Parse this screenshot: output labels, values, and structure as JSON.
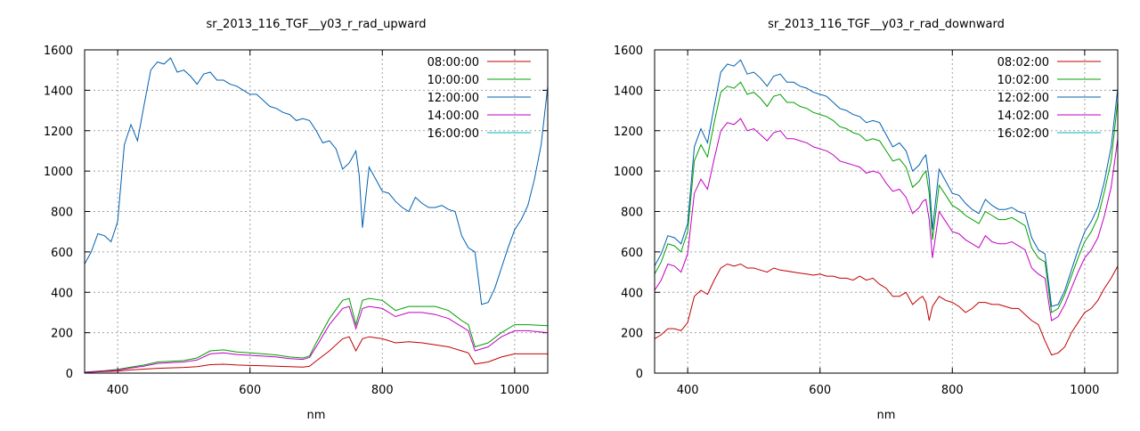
{
  "chart_data": [
    {
      "type": "line",
      "title": "sr_2013_116_TGF__y03_r_rad_upward",
      "xlabel": "nm",
      "ylabel": "",
      "xlim": [
        350,
        1050
      ],
      "ylim": [
        0,
        1600
      ],
      "xticks": [
        400,
        600,
        800,
        1000
      ],
      "yticks": [
        0,
        200,
        400,
        600,
        800,
        1000,
        1200,
        1400,
        1600
      ],
      "grid": true,
      "legend_position": "top-right",
      "series": [
        {
          "name": "08:00:00",
          "color": "#c00000",
          "x": [
            350,
            380,
            400,
            420,
            440,
            460,
            480,
            500,
            520,
            540,
            560,
            580,
            600,
            620,
            640,
            660,
            680,
            690,
            700,
            720,
            740,
            750,
            760,
            770,
            780,
            800,
            820,
            840,
            860,
            880,
            900,
            920,
            930,
            940,
            960,
            980,
            1000,
            1020,
            1050
          ],
          "y": [
            3,
            8,
            10,
            16,
            20,
            24,
            26,
            28,
            32,
            42,
            44,
            40,
            38,
            36,
            34,
            32,
            30,
            34,
            60,
            110,
            170,
            180,
            110,
            170,
            180,
            170,
            150,
            155,
            150,
            140,
            130,
            110,
            100,
            45,
            55,
            80,
            95,
            95,
            95
          ]
        },
        {
          "name": "10:00:00",
          "color": "#00a000",
          "x": [
            350,
            380,
            400,
            420,
            440,
            460,
            480,
            500,
            520,
            540,
            560,
            580,
            600,
            620,
            640,
            660,
            680,
            690,
            700,
            720,
            740,
            750,
            760,
            770,
            780,
            800,
            820,
            840,
            860,
            880,
            900,
            920,
            930,
            940,
            960,
            980,
            1000,
            1020,
            1050
          ],
          "y": [
            5,
            12,
            18,
            30,
            40,
            55,
            58,
            62,
            75,
            110,
            115,
            105,
            100,
            95,
            90,
            80,
            75,
            85,
            150,
            270,
            360,
            370,
            240,
            360,
            370,
            360,
            310,
            330,
            330,
            330,
            310,
            260,
            240,
            130,
            150,
            200,
            240,
            240,
            235
          ]
        },
        {
          "name": "12:00:00",
          "color": "#0060b0",
          "x": [
            350,
            360,
            370,
            380,
            390,
            400,
            410,
            420,
            430,
            440,
            450,
            460,
            470,
            480,
            490,
            500,
            510,
            520,
            530,
            540,
            550,
            560,
            570,
            580,
            590,
            600,
            610,
            620,
            630,
            640,
            650,
            660,
            670,
            680,
            690,
            700,
            710,
            720,
            730,
            740,
            750,
            755,
            760,
            765,
            770,
            780,
            790,
            800,
            810,
            820,
            830,
            840,
            850,
            860,
            870,
            880,
            890,
            900,
            910,
            920,
            930,
            940,
            950,
            960,
            970,
            980,
            990,
            1000,
            1010,
            1020,
            1030,
            1040,
            1050
          ],
          "y": [
            540,
            600,
            690,
            680,
            650,
            750,
            1130,
            1230,
            1150,
            1330,
            1500,
            1540,
            1530,
            1560,
            1490,
            1500,
            1470,
            1430,
            1480,
            1490,
            1450,
            1450,
            1430,
            1420,
            1400,
            1380,
            1380,
            1350,
            1320,
            1310,
            1290,
            1280,
            1250,
            1260,
            1250,
            1200,
            1140,
            1150,
            1110,
            1010,
            1040,
            1070,
            1100,
            980,
            720,
            1020,
            960,
            900,
            890,
            850,
            820,
            800,
            870,
            840,
            820,
            820,
            830,
            810,
            800,
            680,
            620,
            600,
            340,
            350,
            420,
            520,
            620,
            710,
            760,
            830,
            960,
            1130,
            1420
          ]
        },
        {
          "name": "14:00:00",
          "color": "#c000c0",
          "x": [
            350,
            380,
            400,
            420,
            440,
            460,
            480,
            500,
            520,
            540,
            560,
            580,
            600,
            620,
            640,
            660,
            680,
            690,
            700,
            720,
            740,
            750,
            760,
            770,
            780,
            800,
            820,
            840,
            860,
            880,
            900,
            920,
            930,
            940,
            960,
            980,
            1000,
            1020,
            1050
          ],
          "y": [
            4,
            10,
            15,
            25,
            35,
            48,
            52,
            55,
            65,
            95,
            100,
            92,
            88,
            84,
            80,
            72,
            68,
            78,
            130,
            240,
            320,
            330,
            220,
            320,
            330,
            320,
            280,
            300,
            300,
            290,
            270,
            230,
            210,
            110,
            130,
            180,
            210,
            210,
            200
          ]
        },
        {
          "name": "16:00:00",
          "color": "#00b0c0",
          "x": [],
          "y": []
        }
      ]
    },
    {
      "type": "line",
      "title": "sr_2013_116_TGF__y03_r_rad_downward",
      "xlabel": "nm",
      "ylabel": "",
      "xlim": [
        350,
        1050
      ],
      "ylim": [
        0,
        1600
      ],
      "xticks": [
        400,
        600,
        800,
        1000
      ],
      "yticks": [
        0,
        200,
        400,
        600,
        800,
        1000,
        1200,
        1400,
        1600
      ],
      "grid": true,
      "legend_position": "top-right",
      "series": [
        {
          "name": "08:02:00",
          "color": "#c00000",
          "x": [
            350,
            360,
            370,
            380,
            390,
            400,
            410,
            420,
            430,
            440,
            450,
            460,
            470,
            480,
            490,
            500,
            510,
            520,
            530,
            540,
            550,
            560,
            570,
            580,
            590,
            600,
            610,
            620,
            630,
            640,
            650,
            660,
            670,
            680,
            690,
            700,
            710,
            720,
            730,
            740,
            750,
            755,
            760,
            765,
            770,
            780,
            790,
            800,
            810,
            820,
            830,
            840,
            850,
            860,
            870,
            880,
            890,
            900,
            910,
            920,
            930,
            940,
            950,
            960,
            970,
            980,
            990,
            1000,
            1010,
            1020,
            1030,
            1040,
            1050
          ],
          "y": [
            170,
            190,
            220,
            220,
            210,
            250,
            380,
            410,
            390,
            460,
            520,
            540,
            530,
            540,
            520,
            520,
            510,
            500,
            520,
            510,
            505,
            500,
            495,
            490,
            485,
            490,
            480,
            480,
            470,
            470,
            460,
            480,
            460,
            470,
            440,
            420,
            380,
            380,
            400,
            340,
            370,
            380,
            350,
            260,
            330,
            380,
            360,
            350,
            330,
            300,
            320,
            350,
            350,
            340,
            340,
            330,
            320,
            320,
            290,
            260,
            240,
            160,
            90,
            100,
            130,
            200,
            250,
            300,
            320,
            360,
            420,
            470,
            530
          ]
        },
        {
          "name": "10:02:00",
          "color": "#00a000",
          "x": [
            350,
            360,
            370,
            380,
            390,
            400,
            410,
            420,
            430,
            440,
            450,
            460,
            470,
            480,
            490,
            500,
            510,
            520,
            530,
            540,
            550,
            560,
            570,
            580,
            590,
            600,
            610,
            620,
            630,
            640,
            650,
            660,
            670,
            680,
            690,
            700,
            710,
            720,
            730,
            740,
            750,
            755,
            760,
            765,
            770,
            780,
            790,
            800,
            810,
            820,
            830,
            840,
            850,
            860,
            870,
            880,
            890,
            900,
            910,
            920,
            930,
            940,
            950,
            960,
            970,
            980,
            990,
            1000,
            1010,
            1020,
            1030,
            1040,
            1050
          ],
          "y": [
            490,
            550,
            640,
            630,
            600,
            700,
            1050,
            1130,
            1070,
            1240,
            1390,
            1420,
            1410,
            1440,
            1380,
            1390,
            1360,
            1320,
            1370,
            1380,
            1340,
            1340,
            1320,
            1310,
            1290,
            1280,
            1270,
            1250,
            1220,
            1210,
            1190,
            1180,
            1150,
            1160,
            1150,
            1100,
            1050,
            1060,
            1020,
            920,
            950,
            980,
            1000,
            890,
            660,
            930,
            880,
            830,
            810,
            780,
            760,
            740,
            800,
            780,
            760,
            760,
            770,
            750,
            730,
            620,
            570,
            550,
            300,
            320,
            390,
            480,
            570,
            650,
            700,
            770,
            900,
            1050,
            1350
          ]
        },
        {
          "name": "12:02:00",
          "color": "#0060b0",
          "x": [
            350,
            360,
            370,
            380,
            390,
            400,
            410,
            420,
            430,
            440,
            450,
            460,
            470,
            480,
            490,
            500,
            510,
            520,
            530,
            540,
            550,
            560,
            570,
            580,
            590,
            600,
            610,
            620,
            630,
            640,
            650,
            660,
            670,
            680,
            690,
            700,
            710,
            720,
            730,
            740,
            750,
            755,
            760,
            765,
            770,
            780,
            790,
            800,
            810,
            820,
            830,
            840,
            850,
            860,
            870,
            880,
            890,
            900,
            910,
            920,
            930,
            940,
            950,
            960,
            970,
            980,
            990,
            1000,
            1010,
            1020,
            1030,
            1040,
            1050
          ],
          "y": [
            530,
            590,
            680,
            670,
            640,
            740,
            1120,
            1210,
            1140,
            1320,
            1490,
            1530,
            1520,
            1550,
            1480,
            1490,
            1460,
            1420,
            1470,
            1480,
            1440,
            1440,
            1420,
            1410,
            1390,
            1380,
            1370,
            1340,
            1310,
            1300,
            1280,
            1270,
            1240,
            1250,
            1240,
            1180,
            1120,
            1140,
            1100,
            1000,
            1030,
            1060,
            1080,
            960,
            710,
            1010,
            950,
            890,
            880,
            840,
            810,
            790,
            860,
            830,
            810,
            810,
            820,
            800,
            790,
            670,
            610,
            590,
            330,
            340,
            410,
            510,
            610,
            700,
            750,
            820,
            950,
            1120,
            1410
          ]
        },
        {
          "name": "14:02:00",
          "color": "#c000c0",
          "x": [
            350,
            360,
            370,
            380,
            390,
            400,
            410,
            420,
            430,
            440,
            450,
            460,
            470,
            480,
            490,
            500,
            510,
            520,
            530,
            540,
            550,
            560,
            570,
            580,
            590,
            600,
            610,
            620,
            630,
            640,
            650,
            660,
            670,
            680,
            690,
            700,
            710,
            720,
            730,
            740,
            750,
            755,
            760,
            765,
            770,
            780,
            790,
            800,
            810,
            820,
            830,
            840,
            850,
            860,
            870,
            880,
            890,
            900,
            910,
            920,
            930,
            940,
            950,
            960,
            970,
            980,
            990,
            1000,
            1010,
            1020,
            1030,
            1040,
            1050
          ],
          "y": [
            410,
            460,
            540,
            530,
            500,
            590,
            890,
            960,
            910,
            1060,
            1200,
            1240,
            1230,
            1260,
            1200,
            1210,
            1180,
            1150,
            1190,
            1200,
            1160,
            1160,
            1150,
            1140,
            1120,
            1110,
            1100,
            1080,
            1050,
            1040,
            1030,
            1020,
            990,
            1000,
            990,
            940,
            900,
            910,
            870,
            790,
            820,
            850,
            860,
            760,
            570,
            800,
            750,
            700,
            690,
            660,
            640,
            620,
            680,
            650,
            640,
            640,
            650,
            630,
            610,
            520,
            490,
            470,
            260,
            280,
            340,
            420,
            500,
            570,
            610,
            670,
            780,
            920,
            1160
          ]
        },
        {
          "name": "16:02:00",
          "color": "#00b0c0",
          "x": [],
          "y": []
        }
      ]
    }
  ]
}
